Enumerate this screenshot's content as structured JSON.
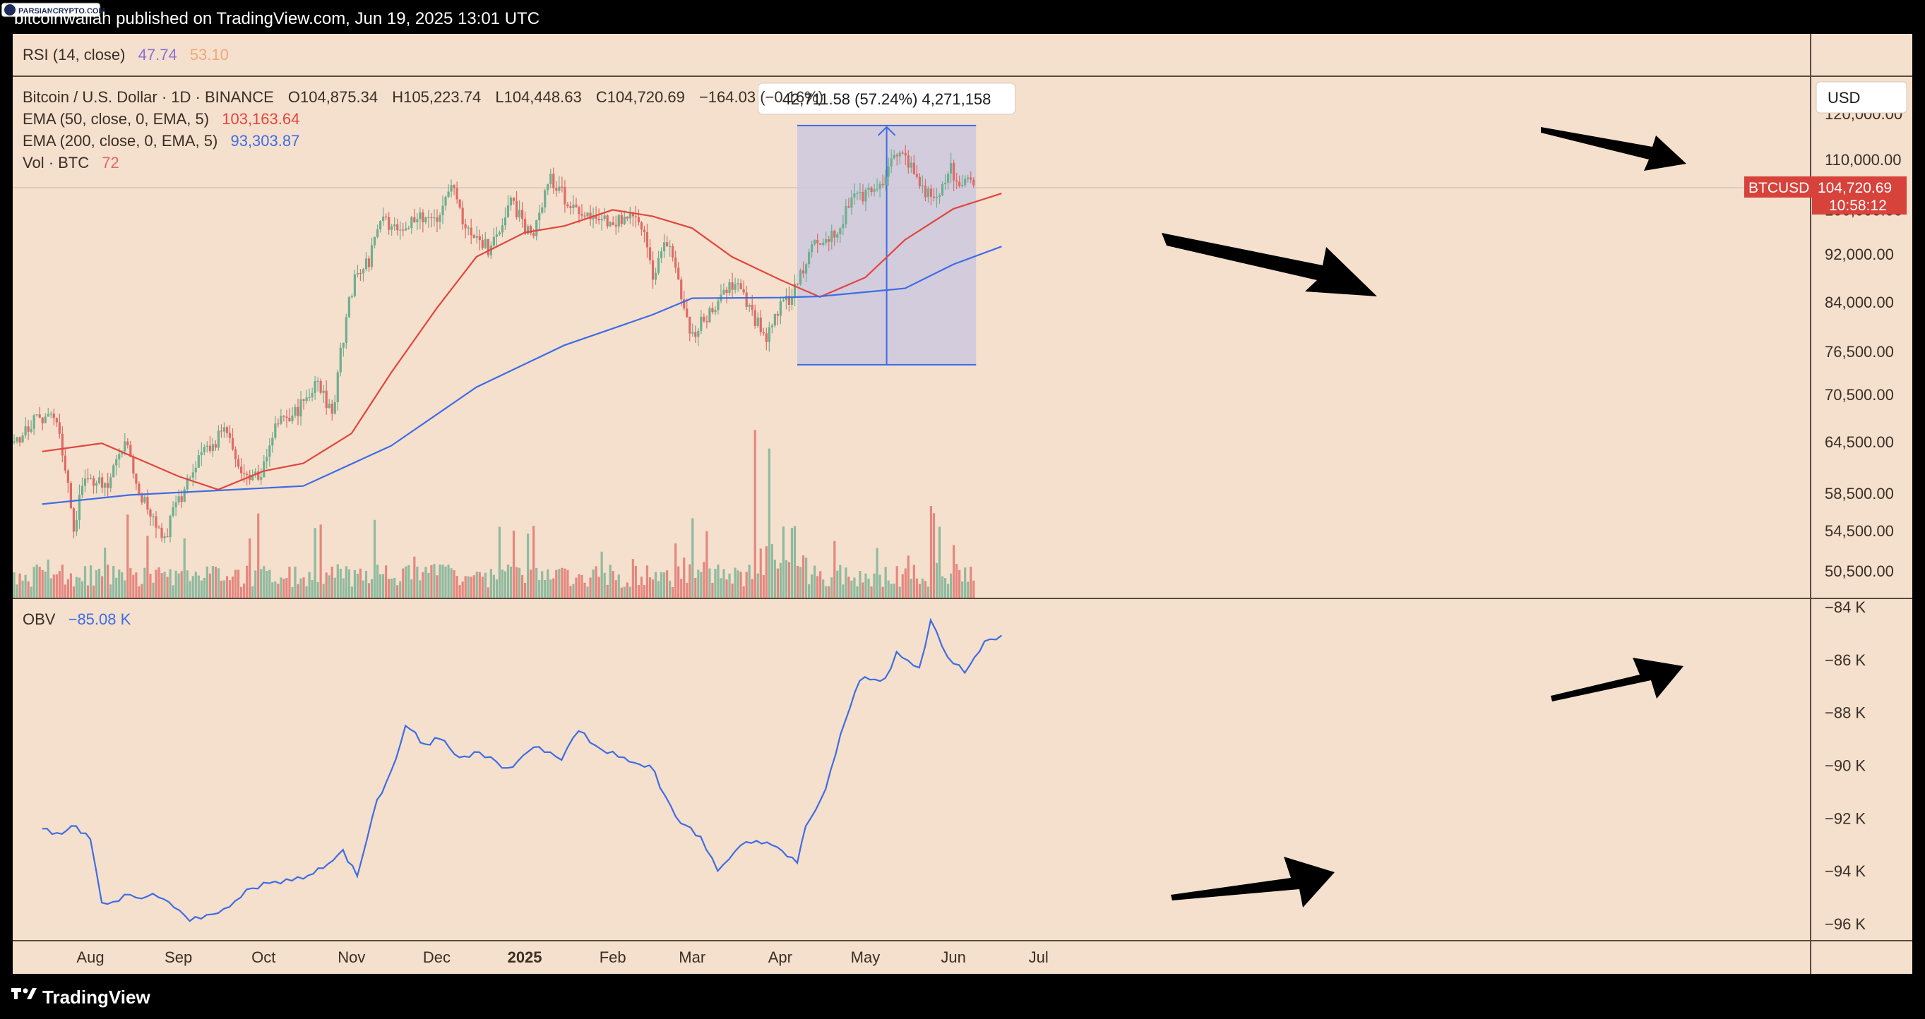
{
  "header": {
    "publisher_line": "bitcoinwallah published on TradingView.com, Jun 19, 2025 13:01 UTC",
    "badge_text": "PARSIANCRYPTO.COM"
  },
  "footer": {
    "brand": "TradingView"
  },
  "currency_button": "USD",
  "rsi_pane": {
    "label": "RSI (14, close)",
    "value1": "47.74",
    "value2": "53.10"
  },
  "legend": {
    "symbol": "Bitcoin / U.S. Dollar · 1D · BINANCE",
    "open": "O104,875.34",
    "high": "H105,223.74",
    "low": "L104,448.63",
    "close": "C104,720.69",
    "change": "−164.03 (−0.16%)",
    "ema50_label": "EMA (50, close, 0, EMA, 5)",
    "ema50_value": "103,163.64",
    "ema200_label": "EMA (200, close, 0, EMA, 5)",
    "ema200_value": "93,303.87",
    "vol_label": "Vol · BTC",
    "vol_value": "72"
  },
  "obv_pane": {
    "label": "OBV",
    "value": "−85.08 K"
  },
  "price_tag": {
    "symbol": "BTCUSD",
    "price": "104,720.69",
    "countdown": "10:58:12"
  },
  "measure_box": {
    "label": "42,711.58 (57.24%) 4,271,158"
  },
  "colors": {
    "background": "#f4e0cd",
    "bull": "#6fae8f",
    "bear": "#e06a65",
    "ema50": "#e0463f",
    "ema200": "#3f6ce4",
    "obv": "#3f6ce4",
    "measure_fill": "#c9c7e0",
    "measure_stroke": "#3f6ce4"
  },
  "chart_data": [
    {
      "type": "candlestick",
      "title": "Bitcoin / U.S. Dollar · 1D · BINANCE",
      "x_ticks": [
        "Aug",
        "Sep",
        "Oct",
        "Nov",
        "Dec",
        "2025",
        "Feb",
        "Mar",
        "Apr",
        "May",
        "Jun",
        "Jul"
      ],
      "x_range": [
        "2024-07-15",
        "2025-07-18"
      ],
      "y_ticks": [
        "120,000.00",
        "110,000.00",
        "100,000.00",
        "92,000.00",
        "84,000.00",
        "76,500.00",
        "70,500.00",
        "64,500.00",
        "58,500.00",
        "54,500.00",
        "50,500.00"
      ],
      "y_scale": "log",
      "ylim": [
        49800,
        122000
      ],
      "last_price": 104720.69,
      "close_path": [
        [
          "2024-07-15",
          64700
        ],
        [
          "2024-07-22",
          66800
        ],
        [
          "2024-07-29",
          68200
        ],
        [
          "2024-08-02",
          61500
        ],
        [
          "2024-08-05",
          54300
        ],
        [
          "2024-08-09",
          60600
        ],
        [
          "2024-08-16",
          59300
        ],
        [
          "2024-08-24",
          64200
        ],
        [
          "2024-08-27",
          59400
        ],
        [
          "2024-09-06",
          53900
        ],
        [
          "2024-09-14",
          59900
        ],
        [
          "2024-09-20",
          63100
        ],
        [
          "2024-09-27",
          65800
        ],
        [
          "2024-10-03",
          60700
        ],
        [
          "2024-10-10",
          60300
        ],
        [
          "2024-10-15",
          66900
        ],
        [
          "2024-10-21",
          67300
        ],
        [
          "2024-10-29",
          72300
        ],
        [
          "2024-11-04",
          67800
        ],
        [
          "2024-11-07",
          75900
        ],
        [
          "2024-11-12",
          88700
        ],
        [
          "2024-11-17",
          90500
        ],
        [
          "2024-11-22",
          99000
        ],
        [
          "2024-11-27",
          95900
        ],
        [
          "2024-12-05",
          98800
        ],
        [
          "2024-12-10",
          97500
        ],
        [
          "2024-12-16",
          106100
        ],
        [
          "2024-12-20",
          97100
        ],
        [
          "2024-12-30",
          92600
        ],
        [
          "2025-01-06",
          102200
        ],
        [
          "2025-01-13",
          94500
        ],
        [
          "2025-01-20",
          106100
        ],
        [
          "2025-01-27",
          101000
        ],
        [
          "2025-02-03",
          97700
        ],
        [
          "2025-02-12",
          97800
        ],
        [
          "2025-02-20",
          98300
        ],
        [
          "2025-02-25",
          88700
        ],
        [
          "2025-03-02",
          94300
        ],
        [
          "2025-03-10",
          78500
        ],
        [
          "2025-03-18",
          83000
        ],
        [
          "2025-03-26",
          87200
        ],
        [
          "2025-04-06",
          78200
        ],
        [
          "2025-04-09",
          82600
        ],
        [
          "2025-04-15",
          84500
        ],
        [
          "2025-04-22",
          93500
        ],
        [
          "2025-05-01",
          96500
        ],
        [
          "2025-05-08",
          103000
        ],
        [
          "2025-05-15",
          103500
        ],
        [
          "2025-05-22",
          111600
        ],
        [
          "2025-05-31",
          104600
        ],
        [
          "2025-06-05",
          101500
        ],
        [
          "2025-06-09",
          108300
        ],
        [
          "2025-06-14",
          105400
        ],
        [
          "2025-06-18",
          104720
        ]
      ],
      "volume_scale_note": "relative volume bars below candles",
      "series": [
        {
          "name": "EMA (50, close, 0, EMA, 5)",
          "points": [
            [
              "2024-07-15",
              63300
            ],
            [
              "2024-08-05",
              64300
            ],
            [
              "2024-09-01",
              60400
            ],
            [
              "2024-09-15",
              58900
            ],
            [
              "2024-10-01",
              61000
            ],
            [
              "2024-10-15",
              61900
            ],
            [
              "2024-11-01",
              65500
            ],
            [
              "2024-11-15",
              73500
            ],
            [
              "2024-12-01",
              83000
            ],
            [
              "2024-12-15",
              91500
            ],
            [
              "2025-01-01",
              95800
            ],
            [
              "2025-01-15",
              97000
            ],
            [
              "2025-02-01",
              100000
            ],
            [
              "2025-02-15",
              98800
            ],
            [
              "2025-03-01",
              96600
            ],
            [
              "2025-03-15",
              91500
            ],
            [
              "2025-04-01",
              87600
            ],
            [
              "2025-04-15",
              84800
            ],
            [
              "2025-05-01",
              88000
            ],
            [
              "2025-05-15",
              94500
            ],
            [
              "2025-06-01",
              100200
            ],
            [
              "2025-06-18",
              103163
            ]
          ]
        },
        {
          "name": "EMA (200, close, 0, EMA, 5)",
          "points": [
            [
              "2024-07-15",
              57300
            ],
            [
              "2024-08-15",
              58300
            ],
            [
              "2024-09-15",
              58800
            ],
            [
              "2024-10-15",
              59300
            ],
            [
              "2024-11-15",
              64000
            ],
            [
              "2024-12-15",
              71500
            ],
            [
              "2025-01-15",
              77400
            ],
            [
              "2025-02-15",
              82000
            ],
            [
              "2025-03-01",
              84600
            ],
            [
              "2025-04-01",
              84700
            ],
            [
              "2025-04-15",
              84900
            ],
            [
              "2025-05-15",
              86200
            ],
            [
              "2025-06-01",
              90200
            ],
            [
              "2025-06-18",
              93303
            ]
          ]
        }
      ],
      "annotation_measure": {
        "from_date": "2025-04-07",
        "to_date": "2025-06-09",
        "low": 74600,
        "high": 117300,
        "label": "42,711.58 (57.24%) 4,271,158"
      }
    },
    {
      "type": "line",
      "title": "OBV",
      "y_ticks": [
        "−84 K",
        "−86 K",
        "−88 K",
        "−90 K",
        "−92 K",
        "−94 K",
        "−96 K"
      ],
      "ylim": [
        -96800,
        -83600
      ],
      "series": [
        {
          "name": "OBV",
          "points": [
            [
              "2024-07-15",
              -92400
            ],
            [
              "2024-07-22",
              -92600
            ],
            [
              "2024-07-27",
              -92300
            ],
            [
              "2024-08-01",
              -92800
            ],
            [
              "2024-08-05",
              -95200
            ],
            [
              "2024-08-15",
              -94900
            ],
            [
              "2024-08-25",
              -95000
            ],
            [
              "2024-09-05",
              -95900
            ],
            [
              "2024-09-15",
              -95600
            ],
            [
              "2024-09-25",
              -94700
            ],
            [
              "2024-10-05",
              -94400
            ],
            [
              "2024-10-15",
              -94300
            ],
            [
              "2024-10-22",
              -93900
            ],
            [
              "2024-10-29",
              -93200
            ],
            [
              "2024-11-03",
              -94200
            ],
            [
              "2024-11-10",
              -91300
            ],
            [
              "2024-11-15",
              -90200
            ],
            [
              "2024-11-20",
              -88500
            ],
            [
              "2024-11-27",
              -89200
            ],
            [
              "2024-12-02",
              -89000
            ],
            [
              "2024-12-09",
              -89700
            ],
            [
              "2024-12-16",
              -89500
            ],
            [
              "2024-12-26",
              -90100
            ],
            [
              "2025-01-06",
              -89300
            ],
            [
              "2025-01-14",
              -89800
            ],
            [
              "2025-01-20",
              -88700
            ],
            [
              "2025-01-28",
              -89400
            ],
            [
              "2025-02-05",
              -89700
            ],
            [
              "2025-02-14",
              -90000
            ],
            [
              "2025-02-25",
              -92200
            ],
            [
              "2025-03-04",
              -92700
            ],
            [
              "2025-03-10",
              -94000
            ],
            [
              "2025-03-20",
              -92900
            ],
            [
              "2025-03-31",
              -93100
            ],
            [
              "2025-04-07",
              -93700
            ],
            [
              "2025-04-10",
              -92300
            ],
            [
              "2025-04-17",
              -90900
            ],
            [
              "2025-04-24",
              -88300
            ],
            [
              "2025-04-29",
              -86800
            ],
            [
              "2025-05-08",
              -86700
            ],
            [
              "2025-05-12",
              -85700
            ],
            [
              "2025-05-20",
              -86300
            ],
            [
              "2025-05-24",
              -84500
            ],
            [
              "2025-05-30",
              -85900
            ],
            [
              "2025-06-05",
              -86500
            ],
            [
              "2025-06-12",
              -85300
            ],
            [
              "2025-06-18",
              -85080
            ]
          ]
        }
      ]
    }
  ]
}
